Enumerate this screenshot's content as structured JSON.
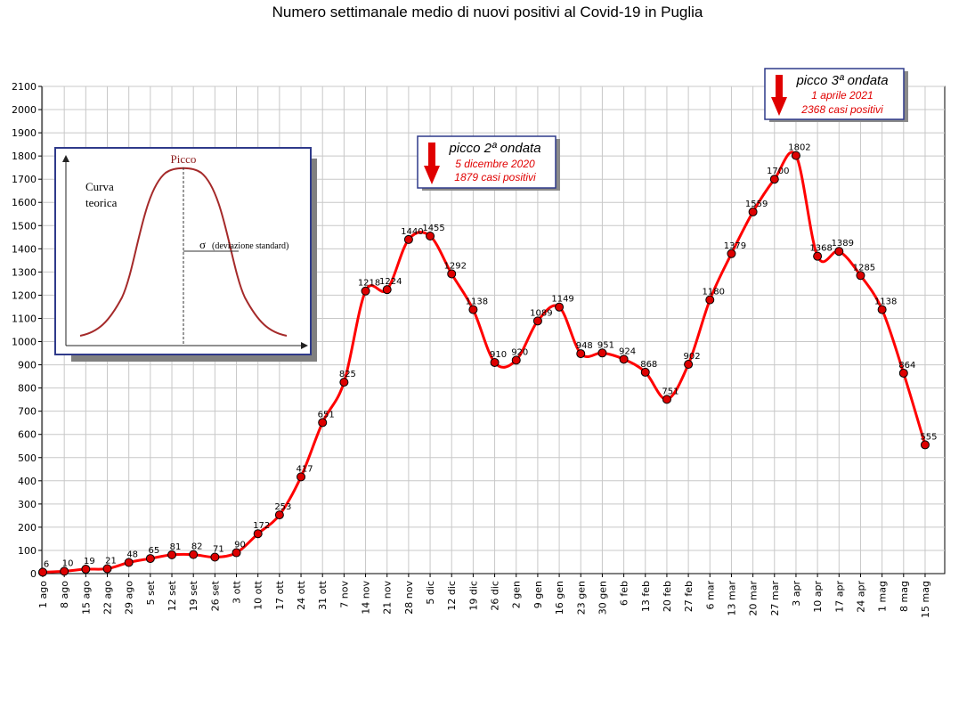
{
  "chart_data": {
    "type": "line",
    "title": "Numero settimanale medio di nuovi positivi al Covid-19 in Puglia",
    "xlabel": "",
    "ylabel": "",
    "ylim": [
      0,
      2100
    ],
    "yticks": [
      0,
      100,
      200,
      300,
      400,
      500,
      600,
      700,
      800,
      900,
      1000,
      1100,
      1200,
      1300,
      1400,
      1500,
      1600,
      1700,
      1800,
      1900,
      2000,
      2100
    ],
    "grid": true,
    "categories": [
      "1 ago",
      "8 ago",
      "15 ago",
      "22 ago",
      "29 ago",
      "5 set",
      "12 set",
      "19 set",
      "26 set",
      "3 ott",
      "10 ott",
      "17 ott",
      "24 ott",
      "31 ott",
      "7 nov",
      "14 nov",
      "21 nov",
      "28 nov",
      "5 dic",
      "12 dic",
      "19 dic",
      "26 dic",
      "2 gen",
      "9 gen",
      "16 gen",
      "23 gen",
      "30 gen",
      "6 feb",
      "13 feb",
      "20 feb",
      "27 feb",
      "6 mar",
      "13 mar",
      "20 mar",
      "27 mar",
      "3 apr",
      "10 apr",
      "17 apr",
      "24 apr",
      "1 mag",
      "8 mag",
      "15 mag"
    ],
    "series": [
      {
        "values": [
          6,
          10,
          19,
          21,
          48,
          65,
          81,
          82,
          71,
          90,
          172,
          253,
          417,
          651,
          825,
          1218,
          1224,
          1440,
          1455,
          1292,
          1138,
          910,
          920,
          1089,
          1149,
          948,
          951,
          924,
          868,
          751,
          902,
          1180,
          1379,
          1559,
          1700,
          1802,
          1368,
          1389,
          1285,
          1138,
          864,
          555
        ],
        "labels": [
          "6",
          "10",
          "19",
          "21",
          "48",
          "65",
          "81",
          "82",
          "71",
          "90",
          "172",
          "253",
          "417",
          "651",
          "825",
          "1218",
          "1224",
          "1440",
          "1455",
          "1292",
          "1138",
          "910",
          "920",
          "1089",
          "1149",
          "948",
          "951",
          "924",
          "868",
          "751",
          "902",
          "1180",
          "1379",
          "1559",
          "1700",
          "1802",
          "1368",
          "1389",
          "1285",
          "1138",
          "864",
          "555"
        ],
        "color": "#ff0000",
        "marker_color": "#dd0000"
      }
    ],
    "annotations": [
      {
        "title": "picco 2ª ondata",
        "line1": "5 dicembre 2020",
        "line2": "1879 casi positivi",
        "arrow_color": "#e00000"
      },
      {
        "title": "picco 3ª ondata",
        "line1": "1 aprile 2021",
        "line2": "2368 casi positivi",
        "arrow_color": "#e00000"
      }
    ],
    "inset": {
      "peak_label": "Picco",
      "curve_label_line1": "Curva",
      "curve_label_line2": "teorica",
      "sigma_symbol": "σ",
      "sigma_label": "(deviazione standard)",
      "curve_color": "#a52a2a",
      "border_color": "#2f3a8a"
    }
  }
}
